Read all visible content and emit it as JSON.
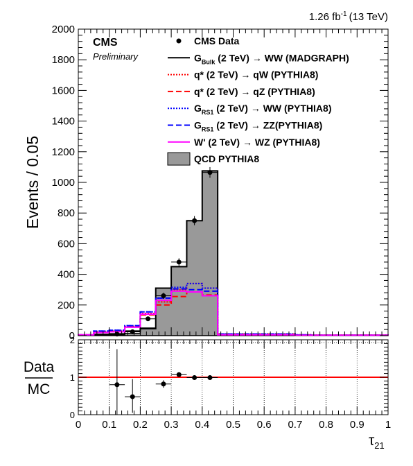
{
  "header": {
    "lumi_value": "1.26 fb",
    "lumi_exp": "-1",
    "lumi_energy": "(13 TeV)"
  },
  "badge": {
    "label": "CMS",
    "sublabel": "Preliminary"
  },
  "legend": [
    {
      "label_main": "CMS Data",
      "label_sub": "",
      "label_rest": "",
      "style": "marker",
      "color": "#000000"
    },
    {
      "label_main": "G",
      "label_sub": "Bulk",
      "label_rest": " (2 TeV) → WW (MADGRAPH)",
      "style": "solid",
      "color": "#000000"
    },
    {
      "label_main": "q* (2 TeV) → qW (PYTHIA8)",
      "label_sub": "",
      "label_rest": "",
      "style": "dotted",
      "color": "#ff0000"
    },
    {
      "label_main": "q* (2 TeV) → qZ (PYTHIA8)",
      "label_sub": "",
      "label_rest": "",
      "style": "dashed",
      "color": "#ff0000"
    },
    {
      "label_main": "G",
      "label_sub": "RS1",
      "label_rest": " (2 TeV) → WW (PYTHIA8)",
      "style": "dotted",
      "color": "#0000ff"
    },
    {
      "label_main": "G",
      "label_sub": "RS1",
      "label_rest": " (2 TeV) → ZZ(PYTHIA8)",
      "style": "dashed",
      "color": "#0000ff"
    },
    {
      "label_main": "W' (2 TeV) → WZ (PYTHIA8)",
      "label_sub": "",
      "label_rest": "",
      "style": "solid",
      "color": "#ff00ff"
    },
    {
      "label_main": "QCD PYTHIA8",
      "label_sub": "",
      "label_rest": "",
      "style": "fill",
      "color": "#999999"
    }
  ],
  "chart_data": [
    {
      "type": "histogram",
      "ylabel": "Events / 0.05",
      "xlim": [
        0,
        1
      ],
      "ylim": [
        0,
        2000
      ],
      "y_ticks": [
        "0",
        "200",
        "400",
        "600",
        "800",
        "1000",
        "1200",
        "1400",
        "1600",
        "1800",
        "2000"
      ],
      "bin_edges": [
        0,
        0.05,
        0.1,
        0.15,
        0.2,
        0.25,
        0.3,
        0.35,
        0.4,
        0.45,
        0.5,
        0.55,
        0.6,
        0.65,
        0.7,
        0.75,
        0.8,
        0.85,
        0.9,
        0.95,
        1.0
      ],
      "qcd": [
        5,
        5,
        5,
        15,
        50,
        310,
        450,
        750,
        1075,
        10,
        10,
        5,
        5,
        5,
        3,
        3,
        3,
        3,
        3,
        3
      ],
      "series": [
        {
          "name": "G_Bulk (2 TeV) → WW (MADGRAPH)",
          "color": "#000000",
          "dash": "",
          "values": [
            3,
            8,
            12,
            30,
            45,
            310,
            450,
            750,
            1075,
            3,
            3,
            3,
            3,
            3,
            3,
            3,
            3,
            3,
            3,
            3
          ]
        },
        {
          "name": "q* (2 TeV) → qW (PYTHIA8)",
          "color": "#ff0000",
          "dash": "2,2",
          "values": [
            5,
            25,
            30,
            60,
            145,
            220,
            300,
            340,
            310,
            10,
            10,
            10,
            10,
            10,
            5,
            3,
            3,
            3,
            3,
            3
          ]
        },
        {
          "name": "q* (2 TeV) → qZ (PYTHIA8)",
          "color": "#ff0000",
          "dash": "8,4",
          "values": [
            5,
            25,
            30,
            60,
            135,
            200,
            255,
            285,
            265,
            10,
            10,
            10,
            10,
            10,
            5,
            3,
            3,
            3,
            3,
            3
          ]
        },
        {
          "name": "G_RS1 (2 TeV) → WW (PYTHIA8)",
          "color": "#0000ff",
          "dash": "2,2",
          "values": [
            5,
            30,
            35,
            65,
            155,
            245,
            315,
            340,
            310,
            10,
            10,
            10,
            10,
            10,
            5,
            3,
            3,
            3,
            3,
            3
          ]
        },
        {
          "name": "G_RS1 (2 TeV) → ZZ(PYTHIA8)",
          "color": "#0000ff",
          "dash": "8,4",
          "values": [
            5,
            30,
            35,
            65,
            155,
            245,
            305,
            300,
            290,
            10,
            10,
            10,
            10,
            10,
            5,
            3,
            3,
            3,
            3,
            3
          ]
        },
        {
          "name": "W' (2 TeV) → WZ (PYTHIA8)",
          "color": "#ff00ff",
          "dash": "",
          "values": [
            5,
            20,
            25,
            55,
            140,
            230,
            290,
            285,
            260,
            5,
            5,
            5,
            5,
            5,
            3,
            3,
            3,
            3,
            3,
            3
          ]
        }
      ],
      "data": [
        {
          "x": 0.125,
          "y": 10,
          "yerr": 5
        },
        {
          "x": 0.175,
          "y": 25,
          "yerr": 8
        },
        {
          "x": 0.225,
          "y": 110,
          "yerr": 15
        },
        {
          "x": 0.275,
          "y": 260,
          "yerr": 20
        },
        {
          "x": 0.325,
          "y": 480,
          "yerr": 25
        },
        {
          "x": 0.375,
          "y": 750,
          "yerr": 30
        },
        {
          "x": 0.425,
          "y": 1065,
          "yerr": 35
        }
      ]
    },
    {
      "type": "scatter",
      "ylabel_num": "Data",
      "ylabel_den": "MC",
      "xlabel_main": "τ",
      "xlabel_sub": "21",
      "xlim": [
        0,
        1
      ],
      "ylim": [
        0,
        2
      ],
      "x_ticks": [
        "0",
        "0.1",
        "0.2",
        "0.3",
        "0.4",
        "0.5",
        "0.6",
        "0.7",
        "0.8",
        "0.9",
        "1"
      ],
      "y_ticks": [
        "0",
        "1",
        "2"
      ],
      "reference_line": 1,
      "reference_color": "#ff0000",
      "points": [
        {
          "x": 0.125,
          "y": 0.8,
          "xerr": 0.025,
          "ylo": 0.0,
          "yhi": 1.75
        },
        {
          "x": 0.175,
          "y": 0.48,
          "xerr": 0.025,
          "ylo": 0.05,
          "yhi": 0.95
        },
        {
          "x": 0.275,
          "y": 0.82,
          "xerr": 0.025,
          "ylo": 0.72,
          "yhi": 0.92
        },
        {
          "x": 0.325,
          "y": 1.07,
          "xerr": 0.025,
          "ylo": 1.01,
          "yhi": 1.13
        },
        {
          "x": 0.375,
          "y": 0.99,
          "xerr": 0.025,
          "ylo": 0.95,
          "yhi": 1.03
        },
        {
          "x": 0.425,
          "y": 0.99,
          "xerr": 0.025,
          "ylo": 0.96,
          "yhi": 1.02
        }
      ]
    }
  ]
}
